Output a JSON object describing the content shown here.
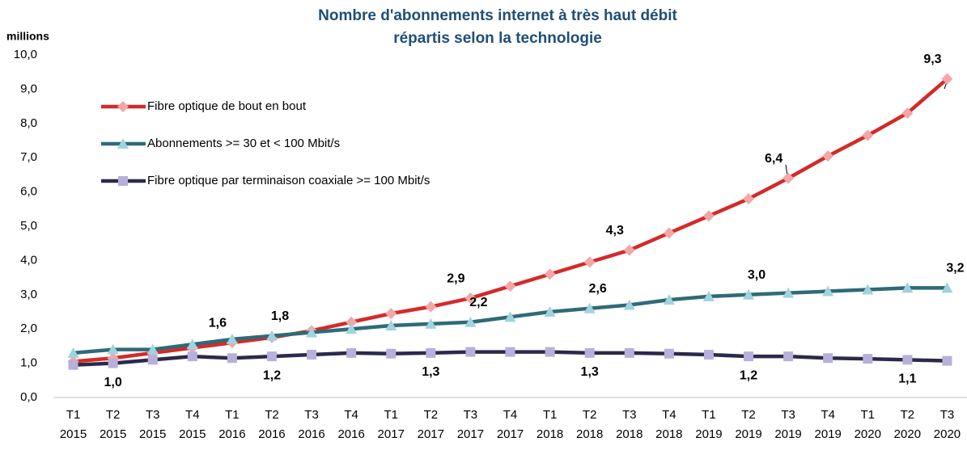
{
  "chart_data": {
    "type": "line",
    "title": [
      "Nombre d'abonnements internet à très haut débit",
      "répartis selon la technologie"
    ],
    "y_label": "millions",
    "categories": [
      [
        "T1",
        "2015"
      ],
      [
        "T2",
        "2015"
      ],
      [
        "T3",
        "2015"
      ],
      [
        "T4",
        "2015"
      ],
      [
        "T1",
        "2016"
      ],
      [
        "T2",
        "2016"
      ],
      [
        "T3",
        "2016"
      ],
      [
        "T4",
        "2016"
      ],
      [
        "T1",
        "2017"
      ],
      [
        "T2",
        "2017"
      ],
      [
        "T3",
        "2017"
      ],
      [
        "T4",
        "2017"
      ],
      [
        "T1",
        "2018"
      ],
      [
        "T2",
        "2018"
      ],
      [
        "T3",
        "2018"
      ],
      [
        "T4",
        "2018"
      ],
      [
        "T1",
        "2019"
      ],
      [
        "T2",
        "2019"
      ],
      [
        "T3",
        "2019"
      ],
      [
        "T4",
        "2019"
      ],
      [
        "T1",
        "2020"
      ],
      [
        "T2",
        "2020"
      ],
      [
        "T3",
        "2020"
      ]
    ],
    "ylim": [
      0,
      10
    ],
    "yticks": [
      {
        "value": 0,
        "label": "0,0"
      },
      {
        "value": 1,
        "label": "1,0"
      },
      {
        "value": 2,
        "label": "2,0"
      },
      {
        "value": 3,
        "label": "3,0"
      },
      {
        "value": 4,
        "label": "4,0"
      },
      {
        "value": 5,
        "label": "5,0"
      },
      {
        "value": 6,
        "label": "6,0"
      },
      {
        "value": 7,
        "label": "7,0"
      },
      {
        "value": 8,
        "label": "8,0"
      },
      {
        "value": 9,
        "label": "9,0"
      },
      {
        "value": 10,
        "label": "10,0"
      }
    ],
    "legend": "upper left",
    "series": [
      {
        "name": "Fibre optique de bout en bout",
        "color": "#d42a2a",
        "marker_color": "#f4a6a6",
        "marker": "diamond",
        "label_color": "#e01f1f",
        "values": [
          1.05,
          1.15,
          1.3,
          1.45,
          1.6,
          1.75,
          1.95,
          2.2,
          2.45,
          2.65,
          2.9,
          3.25,
          3.6,
          3.95,
          4.3,
          4.8,
          5.3,
          5.8,
          6.4,
          7.05,
          7.65,
          8.3,
          9.3
        ],
        "value_labels": [
          null,
          null,
          null,
          null,
          "1,6",
          null,
          null,
          null,
          null,
          null,
          "2,9",
          null,
          null,
          null,
          "4,3",
          null,
          null,
          null,
          "6,4",
          null,
          null,
          null,
          "9,3"
        ]
      },
      {
        "name": "Abonnements >= 30 et < 100 Mbit/s",
        "color": "#2e6b78",
        "marker_color": "#9fd3e0",
        "marker": "triangle",
        "label_color": "#1f4e79",
        "values": [
          1.3,
          1.4,
          1.4,
          1.55,
          1.7,
          1.8,
          1.9,
          2.0,
          2.1,
          2.15,
          2.2,
          2.35,
          2.5,
          2.6,
          2.7,
          2.85,
          2.95,
          3.0,
          3.05,
          3.1,
          3.15,
          3.2,
          3.2
        ],
        "value_labels": [
          null,
          null,
          null,
          null,
          null,
          "1,8",
          null,
          null,
          null,
          null,
          "2,2",
          null,
          null,
          "2,6",
          null,
          null,
          null,
          "3,0",
          null,
          null,
          null,
          null,
          "3,2"
        ]
      },
      {
        "name": "Fibre optique par terminaison coaxiale >= 100 Mbit/s",
        "color": "#2b2a4a",
        "marker_color": "#b8b0da",
        "marker": "square",
        "label_color": "#7a6bb5",
        "values": [
          0.95,
          1.0,
          1.1,
          1.2,
          1.15,
          1.2,
          1.25,
          1.3,
          1.28,
          1.3,
          1.33,
          1.33,
          1.33,
          1.3,
          1.3,
          1.28,
          1.25,
          1.2,
          1.2,
          1.15,
          1.13,
          1.1,
          1.07
        ],
        "value_labels": [
          null,
          "1,0",
          null,
          null,
          null,
          "1,2",
          null,
          null,
          null,
          "1,3",
          null,
          null,
          null,
          "1,3",
          null,
          null,
          null,
          "1,2",
          null,
          null,
          null,
          "1,1",
          null
        ]
      }
    ]
  }
}
